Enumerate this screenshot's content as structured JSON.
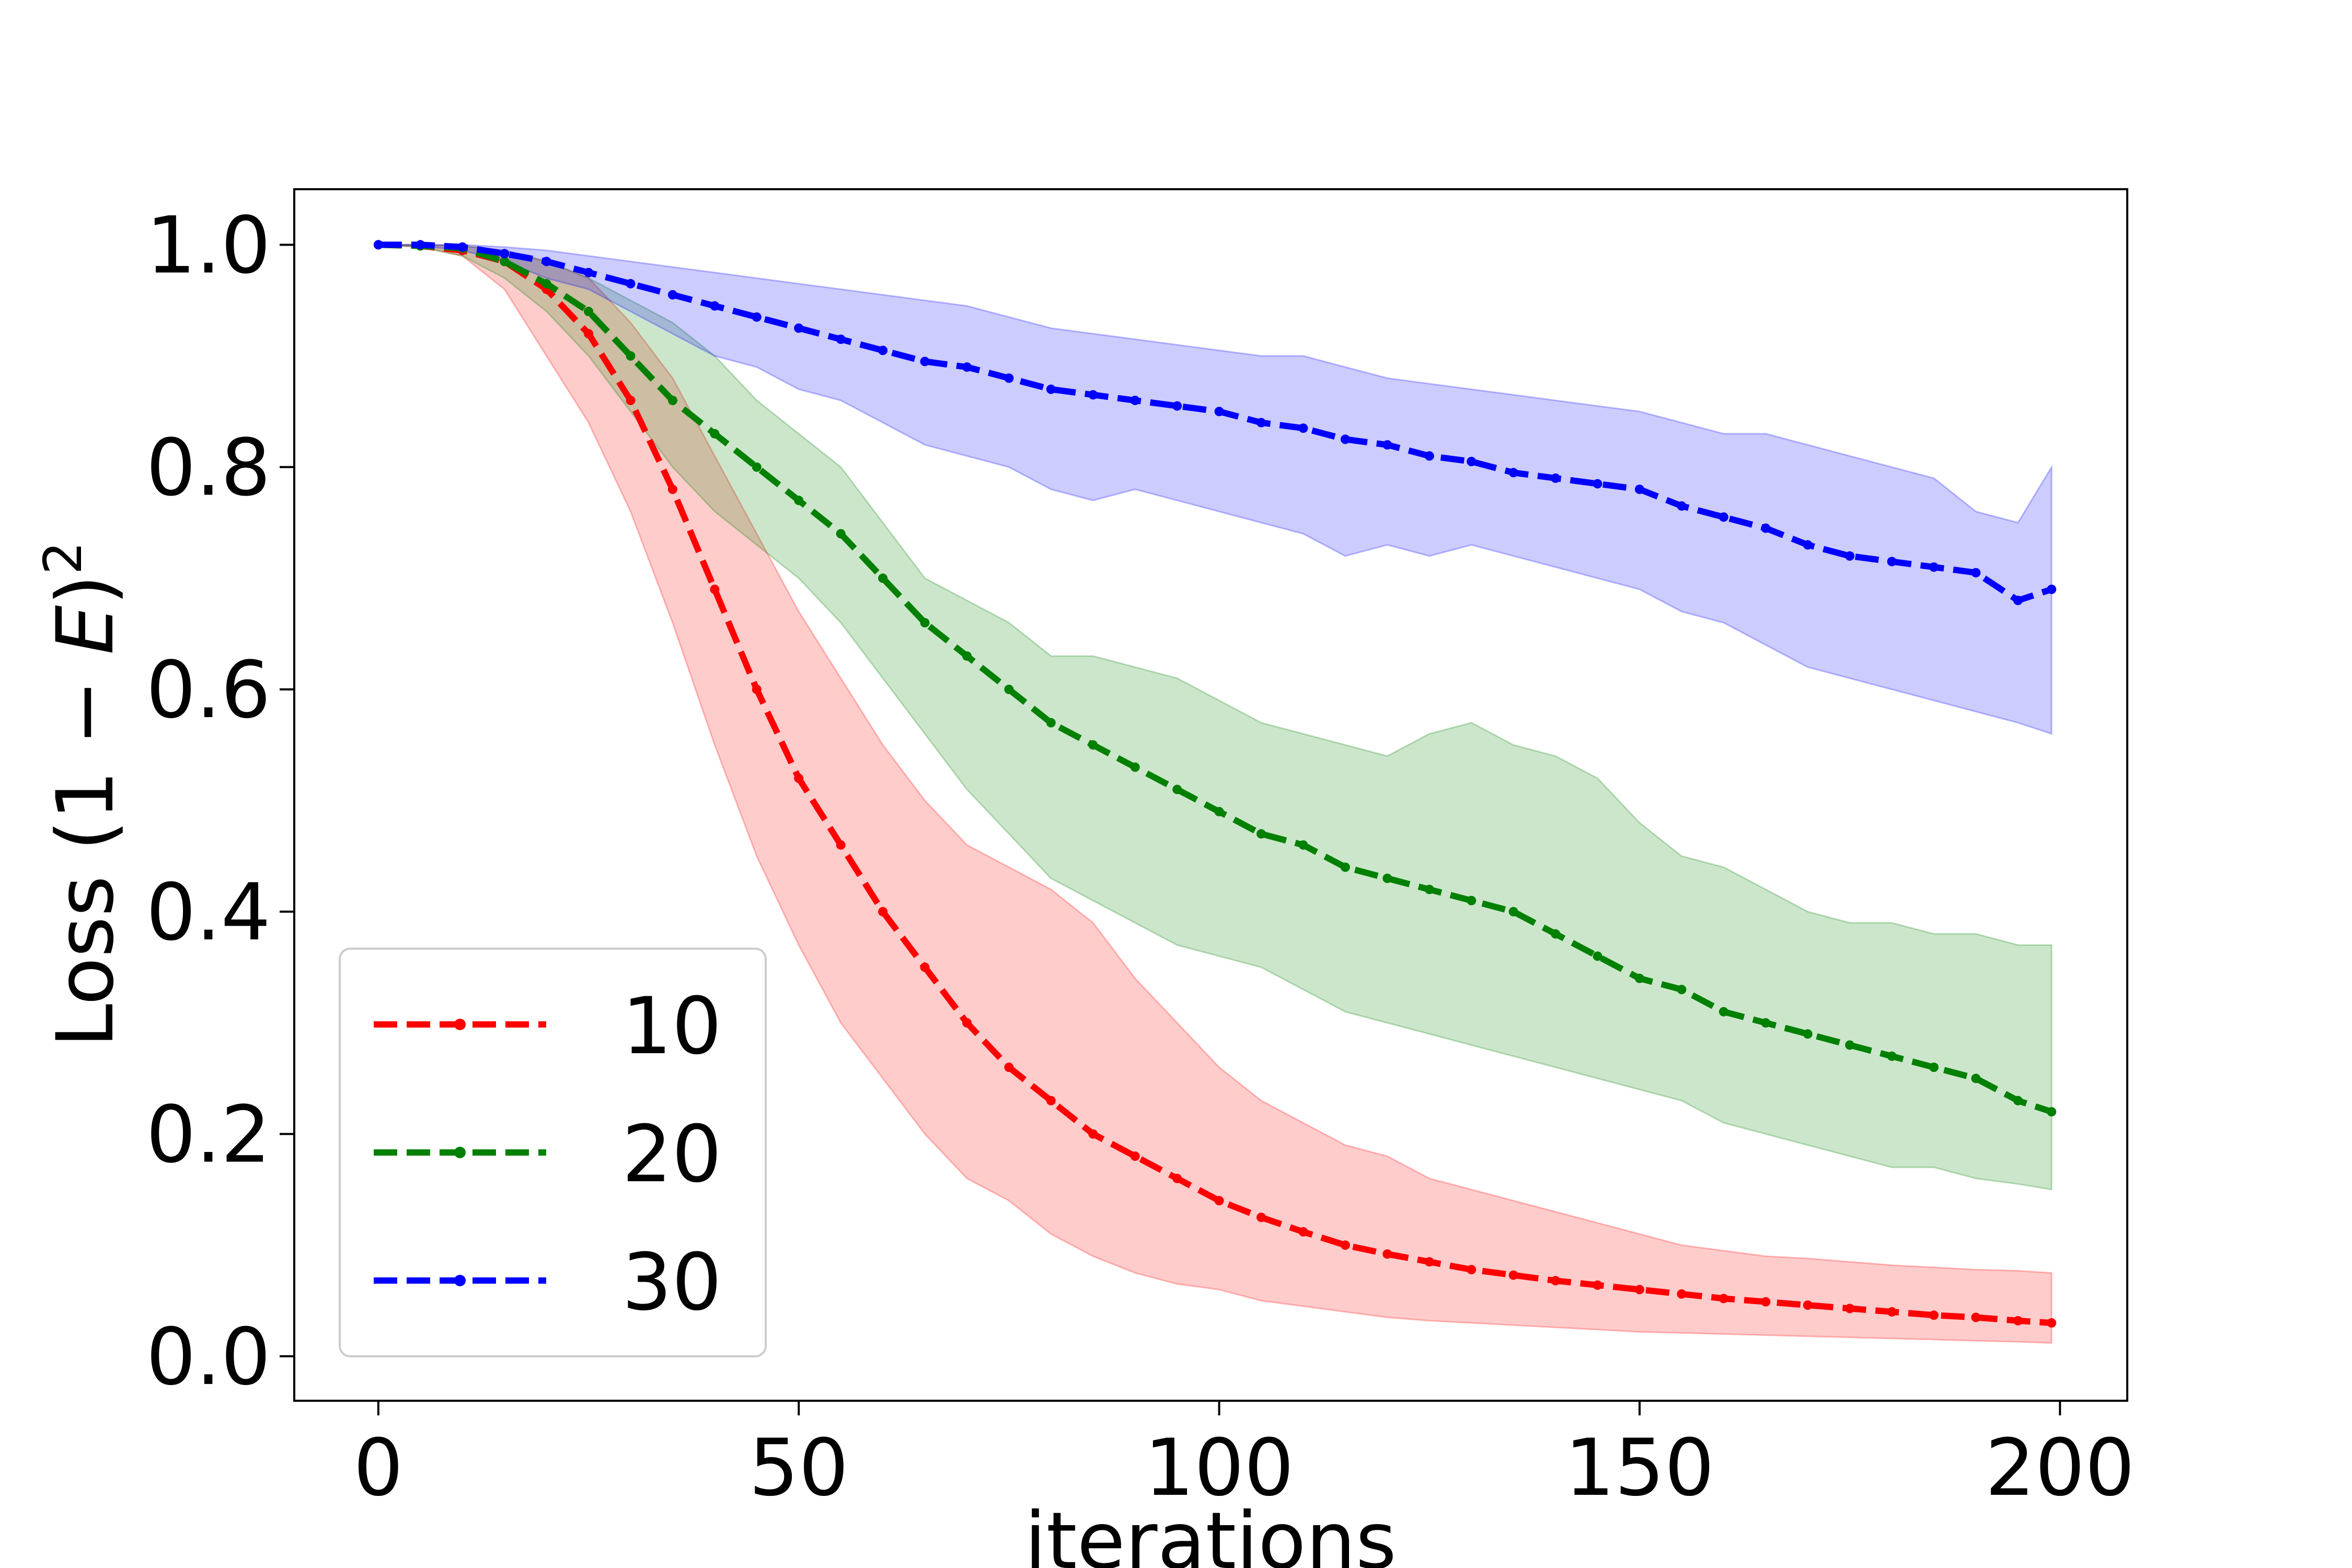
{
  "chart_data": {
    "type": "line",
    "title": "",
    "xlabel": "iterations",
    "ylabel_text": "Loss (1 − ",
    "ylabel_var": "E",
    "ylabel_close": ")",
    "ylabel_sup": "2",
    "xlim": [
      -10,
      208
    ],
    "ylim": [
      -0.04,
      1.05
    ],
    "xticks": [
      0,
      50,
      100,
      150,
      200
    ],
    "xtick_labels": [
      "0",
      "50",
      "100",
      "150",
      "200"
    ],
    "yticks": [
      0.0,
      0.2,
      0.4,
      0.6,
      0.8,
      1.0
    ],
    "ytick_labels": [
      "0.0",
      "0.2",
      "0.4",
      "0.6",
      "0.8",
      "1.0"
    ],
    "grid": false,
    "legend_position": "lower-left",
    "x": [
      0,
      5,
      10,
      15,
      20,
      25,
      30,
      35,
      40,
      45,
      50,
      55,
      60,
      65,
      70,
      75,
      80,
      85,
      90,
      95,
      100,
      105,
      110,
      115,
      120,
      125,
      130,
      135,
      140,
      145,
      150,
      155,
      160,
      165,
      170,
      175,
      180,
      185,
      190,
      195,
      199
    ],
    "series": [
      {
        "name": "10",
        "color": "#ff0000",
        "band_color": "#ff0000",
        "mean": [
          1.0,
          0.999,
          0.995,
          0.985,
          0.96,
          0.92,
          0.86,
          0.78,
          0.69,
          0.6,
          0.52,
          0.46,
          0.4,
          0.35,
          0.3,
          0.26,
          0.23,
          0.2,
          0.18,
          0.16,
          0.14,
          0.125,
          0.112,
          0.1,
          0.092,
          0.085,
          0.078,
          0.073,
          0.068,
          0.064,
          0.06,
          0.056,
          0.052,
          0.049,
          0.046,
          0.043,
          0.04,
          0.037,
          0.035,
          0.032,
          0.03
        ],
        "lower": [
          1.0,
          0.998,
          0.99,
          0.96,
          0.9,
          0.84,
          0.76,
          0.66,
          0.55,
          0.45,
          0.37,
          0.3,
          0.25,
          0.2,
          0.16,
          0.14,
          0.11,
          0.09,
          0.075,
          0.065,
          0.06,
          0.05,
          0.045,
          0.04,
          0.035,
          0.032,
          0.03,
          0.028,
          0.026,
          0.024,
          0.022,
          0.021,
          0.02,
          0.019,
          0.018,
          0.017,
          0.016,
          0.015,
          0.014,
          0.013,
          0.012
        ],
        "upper": [
          1.0,
          1.0,
          0.999,
          0.995,
          0.985,
          0.97,
          0.93,
          0.88,
          0.81,
          0.74,
          0.67,
          0.61,
          0.55,
          0.5,
          0.46,
          0.44,
          0.42,
          0.39,
          0.34,
          0.3,
          0.26,
          0.23,
          0.21,
          0.19,
          0.18,
          0.16,
          0.15,
          0.14,
          0.13,
          0.12,
          0.11,
          0.1,
          0.095,
          0.09,
          0.088,
          0.085,
          0.082,
          0.08,
          0.078,
          0.077,
          0.075
        ]
      },
      {
        "name": "20",
        "color": "#008000",
        "band_color": "#008000",
        "mean": [
          1.0,
          0.999,
          0.997,
          0.985,
          0.965,
          0.94,
          0.9,
          0.86,
          0.83,
          0.8,
          0.77,
          0.74,
          0.7,
          0.66,
          0.63,
          0.6,
          0.57,
          0.55,
          0.53,
          0.51,
          0.49,
          0.47,
          0.46,
          0.44,
          0.43,
          0.42,
          0.41,
          0.4,
          0.38,
          0.36,
          0.34,
          0.33,
          0.31,
          0.3,
          0.29,
          0.28,
          0.27,
          0.26,
          0.25,
          0.23,
          0.22
        ],
        "lower": [
          1.0,
          0.998,
          0.99,
          0.97,
          0.94,
          0.9,
          0.85,
          0.8,
          0.76,
          0.73,
          0.7,
          0.66,
          0.61,
          0.56,
          0.51,
          0.47,
          0.43,
          0.41,
          0.39,
          0.37,
          0.36,
          0.35,
          0.33,
          0.31,
          0.3,
          0.29,
          0.28,
          0.27,
          0.26,
          0.25,
          0.24,
          0.23,
          0.21,
          0.2,
          0.19,
          0.18,
          0.17,
          0.17,
          0.16,
          0.155,
          0.15
        ],
        "upper": [
          1.0,
          1.0,
          0.999,
          0.995,
          0.985,
          0.97,
          0.95,
          0.93,
          0.9,
          0.86,
          0.83,
          0.8,
          0.75,
          0.7,
          0.68,
          0.66,
          0.63,
          0.63,
          0.62,
          0.61,
          0.59,
          0.57,
          0.56,
          0.55,
          0.54,
          0.56,
          0.57,
          0.55,
          0.54,
          0.52,
          0.48,
          0.45,
          0.44,
          0.42,
          0.4,
          0.39,
          0.39,
          0.38,
          0.38,
          0.37,
          0.37
        ]
      },
      {
        "name": "30",
        "color": "#0000ff",
        "band_color": "#0000ff",
        "mean": [
          1.0,
          1.0,
          0.998,
          0.992,
          0.985,
          0.975,
          0.965,
          0.955,
          0.945,
          0.935,
          0.925,
          0.915,
          0.905,
          0.895,
          0.89,
          0.88,
          0.87,
          0.865,
          0.86,
          0.855,
          0.85,
          0.84,
          0.835,
          0.825,
          0.82,
          0.81,
          0.805,
          0.795,
          0.79,
          0.785,
          0.78,
          0.765,
          0.755,
          0.745,
          0.73,
          0.72,
          0.715,
          0.71,
          0.705,
          0.68,
          0.69
        ],
        "lower": [
          1.0,
          0.999,
          0.995,
          0.985,
          0.97,
          0.96,
          0.94,
          0.92,
          0.9,
          0.89,
          0.87,
          0.86,
          0.84,
          0.82,
          0.81,
          0.8,
          0.78,
          0.77,
          0.78,
          0.77,
          0.76,
          0.75,
          0.74,
          0.72,
          0.73,
          0.72,
          0.73,
          0.72,
          0.71,
          0.7,
          0.69,
          0.67,
          0.66,
          0.64,
          0.62,
          0.61,
          0.6,
          0.59,
          0.58,
          0.57,
          0.56
        ],
        "upper": [
          1.0,
          1.0,
          1.0,
          0.998,
          0.995,
          0.99,
          0.985,
          0.98,
          0.975,
          0.97,
          0.965,
          0.96,
          0.955,
          0.95,
          0.945,
          0.935,
          0.925,
          0.92,
          0.915,
          0.91,
          0.905,
          0.9,
          0.9,
          0.89,
          0.88,
          0.875,
          0.87,
          0.865,
          0.86,
          0.855,
          0.85,
          0.84,
          0.83,
          0.83,
          0.82,
          0.81,
          0.8,
          0.79,
          0.76,
          0.75,
          0.8
        ]
      }
    ]
  }
}
